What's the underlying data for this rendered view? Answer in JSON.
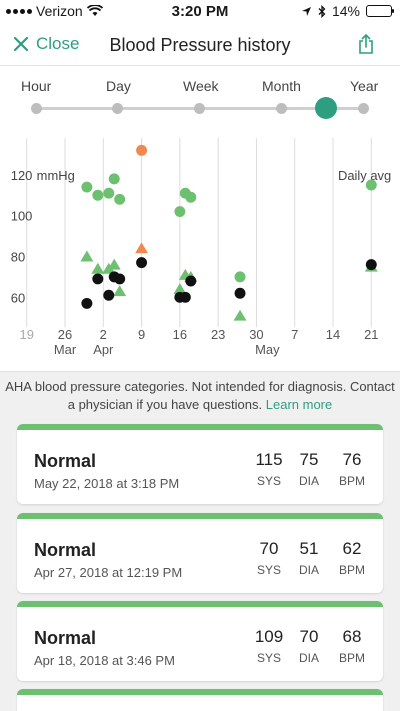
{
  "status_bar": {
    "carrier": "Verizon",
    "time": "3:20 PM",
    "battery": "14%"
  },
  "nav": {
    "close_label": "Close",
    "title": "Blood Pressure history"
  },
  "time_scale": {
    "options": [
      "Hour",
      "Day",
      "Week",
      "Month",
      "Year"
    ],
    "selected": "Month"
  },
  "chart_data": {
    "type": "scatter",
    "ylabel": "mmHg",
    "right_label": "Daily avg",
    "ylim": [
      50,
      130
    ],
    "yticks": [
      60,
      80,
      100,
      120
    ],
    "x_day_range": [
      19,
      81
    ],
    "x_ticks": [
      {
        "day": 19,
        "label": "19"
      },
      {
        "day": 26,
        "label": "26"
      },
      {
        "day": 33,
        "label": "2"
      },
      {
        "day": 40,
        "label": "9"
      },
      {
        "day": 47,
        "label": "16"
      },
      {
        "day": 54,
        "label": "23"
      },
      {
        "day": 61,
        "label": "30"
      },
      {
        "day": 68,
        "label": "7"
      },
      {
        "day": 75,
        "label": "14"
      },
      {
        "day": 82,
        "label": "21"
      }
    ],
    "month_labels": [
      {
        "day": 26,
        "label": "Mar"
      },
      {
        "day": 33,
        "label": "Apr"
      },
      {
        "day": 63,
        "label": "May"
      }
    ],
    "colors": {
      "normal": "#6cc070",
      "elevated": "#ef8a4e",
      "pulse": "#111111"
    },
    "series": [
      {
        "kind": "systolic",
        "points": [
          {
            "x": 30,
            "y": 114,
            "c": "normal"
          },
          {
            "x": 32,
            "y": 110,
            "c": "normal"
          },
          {
            "x": 34,
            "y": 111,
            "c": "normal"
          },
          {
            "x": 35,
            "y": 118,
            "c": "normal"
          },
          {
            "x": 36,
            "y": 108,
            "c": "normal"
          },
          {
            "x": 40,
            "y": 132,
            "c": "elevated"
          },
          {
            "x": 47,
            "y": 102,
            "c": "normal"
          },
          {
            "x": 48,
            "y": 111,
            "c": "normal"
          },
          {
            "x": 49,
            "y": 109,
            "c": "normal"
          },
          {
            "x": 58,
            "y": 70,
            "c": "normal"
          },
          {
            "x": 82,
            "y": 115,
            "c": "normal"
          }
        ]
      },
      {
        "kind": "diastolic",
        "points": [
          {
            "x": 30,
            "y": 80,
            "c": "normal"
          },
          {
            "x": 32,
            "y": 74,
            "c": "normal"
          },
          {
            "x": 34,
            "y": 74,
            "c": "normal"
          },
          {
            "x": 35,
            "y": 76,
            "c": "normal"
          },
          {
            "x": 36,
            "y": 63,
            "c": "normal"
          },
          {
            "x": 40,
            "y": 84,
            "c": "elevated"
          },
          {
            "x": 47,
            "y": 64,
            "c": "normal"
          },
          {
            "x": 48,
            "y": 71,
            "c": "normal"
          },
          {
            "x": 49,
            "y": 70,
            "c": "normal"
          },
          {
            "x": 58,
            "y": 51,
            "c": "normal"
          },
          {
            "x": 82,
            "y": 75,
            "c": "normal"
          }
        ]
      },
      {
        "kind": "pulse",
        "points": [
          {
            "x": 30,
            "y": 57
          },
          {
            "x": 32,
            "y": 69
          },
          {
            "x": 34,
            "y": 61
          },
          {
            "x": 35,
            "y": 70
          },
          {
            "x": 36,
            "y": 69
          },
          {
            "x": 40,
            "y": 77
          },
          {
            "x": 47,
            "y": 60
          },
          {
            "x": 48,
            "y": 60
          },
          {
            "x": 49,
            "y": 68
          },
          {
            "x": 58,
            "y": 62
          },
          {
            "x": 82,
            "y": 76
          }
        ]
      }
    ]
  },
  "notice": {
    "text": "AHA blood pressure categories. Not intended for diagnosis. Contact a physician if you have questions.",
    "link": "Learn more"
  },
  "readings": [
    {
      "category": "Normal",
      "date": "May 22, 2018 at 3:18 PM",
      "sys": "115",
      "dia": "75",
      "bpm": "76",
      "sys_label": "SYS",
      "dia_label": "DIA",
      "bpm_label": "BPM"
    },
    {
      "category": "Normal",
      "date": "Apr 27, 2018 at 12:19 PM",
      "sys": "70",
      "dia": "51",
      "bpm": "62",
      "sys_label": "SYS",
      "dia_label": "DIA",
      "bpm_label": "BPM"
    },
    {
      "category": "Normal",
      "date": "Apr 18, 2018 at 3:46 PM",
      "sys": "109",
      "dia": "70",
      "bpm": "68",
      "sys_label": "SYS",
      "dia_label": "DIA",
      "bpm_label": "BPM"
    }
  ]
}
